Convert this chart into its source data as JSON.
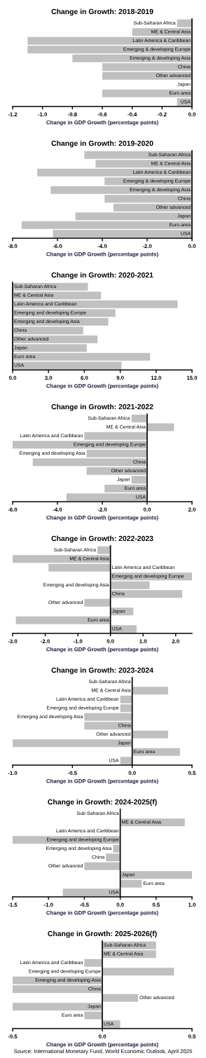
{
  "chart_data": [
    {
      "type": "bar",
      "orientation": "horizontal",
      "title": "Change in Growth: 2018-2019",
      "xlabel": "Change in GDP Growth (percentage points)",
      "color": "#c0c0c0",
      "categories": [
        "Sub-Saharan Africa",
        "ME & Central Asia",
        "Latin America & Caribbean",
        "Emerging & developing Europe",
        "Emerging & developing Asia",
        "China",
        "Other advanced",
        "Japan",
        "Euro area",
        "USA"
      ],
      "values": [
        -0.1,
        -0.4,
        -1.1,
        -1.1,
        -0.8,
        -0.6,
        -0.6,
        0.0,
        -0.6,
        -0.1
      ],
      "xlim": [
        -1.2,
        0.0
      ],
      "xticks": [
        {
          "value": -1.2,
          "label": "-1.2"
        },
        {
          "value": -1.0,
          "label": "-1.0"
        },
        {
          "value": -0.8,
          "label": "-0.8"
        },
        {
          "value": -0.6,
          "label": "-0.6"
        },
        {
          "value": -0.4,
          "label": "-0.4"
        },
        {
          "value": -0.2,
          "label": "-0.2"
        },
        {
          "value": 0,
          "label": "0.0"
        }
      ]
    },
    {
      "type": "bar",
      "orientation": "horizontal",
      "title": "Change in Growth: 2019-2020",
      "xlabel": "Change in GDP Growth (percentage points)",
      "color": "#c0c0c0",
      "categories": [
        "Sub-Saharan Africa",
        "ME & Central Asia",
        "Latin America & Caribbean",
        "Emerging & developing Europe",
        "Emerging & developing Asia",
        "China",
        "Other advanced",
        "Japan",
        "Euro area",
        "USA"
      ],
      "values": [
        -4.8,
        -4.3,
        -6.9,
        -3.9,
        -6.3,
        -3.9,
        -3.5,
        -5.2,
        -7.6,
        -6.2
      ],
      "xlim": [
        -8.0,
        0.0
      ],
      "xticks": [
        {
          "value": -8,
          "label": "-8.0"
        },
        {
          "value": -6,
          "label": "-6.0"
        },
        {
          "value": -4,
          "label": "-4.0"
        },
        {
          "value": -2,
          "label": "-2.0"
        },
        {
          "value": 0,
          "label": "0.0"
        }
      ]
    },
    {
      "type": "bar",
      "orientation": "horizontal",
      "title": "Change in Growth: 2020-2021",
      "xlabel": "Change in GDP Growth (percentage points)",
      "color": "#c0c0c0",
      "categories": [
        "Sub-Saharan Africa",
        "ME & Central Asia",
        "Latin America and Caribbean",
        "Emerging and developing Europe",
        "Emerging and developing Asia",
        "China",
        "Other advanced",
        "Japan",
        "Euro area",
        "USA"
      ],
      "values": [
        6.3,
        7.4,
        13.8,
        8.6,
        8.0,
        5.9,
        7.1,
        6.2,
        11.5,
        9.1
      ],
      "xlim": [
        0.0,
        15.0
      ],
      "xticks": [
        {
          "value": 0,
          "label": "0.0"
        },
        {
          "value": 3,
          "label": "3.0"
        },
        {
          "value": 6,
          "label": "6.0"
        },
        {
          "value": 9,
          "label": "9.0"
        },
        {
          "value": 12,
          "label": "12.0"
        },
        {
          "value": 15,
          "label": "15.0"
        }
      ]
    },
    {
      "type": "bar",
      "orientation": "horizontal",
      "title": "Change in Growth: 2021-2022",
      "xlabel": "Change in GDP Growth (percentage points)",
      "color": "#c0c0c0",
      "categories": [
        "Sub-Saharan Africa",
        "ME & Central Asia",
        "Latin America and Caribbean",
        "Emerging and developing Europe",
        "Emerging and developing Asia",
        "China",
        "Other advanced",
        "Japan",
        "Euro area",
        "USA"
      ],
      "values": [
        -0.7,
        1.2,
        -2.8,
        -6.0,
        -2.7,
        -5.1,
        -2.7,
        -0.7,
        -1.9,
        -3.6
      ],
      "xlim": [
        -6.0,
        2.0
      ],
      "xticks": [
        {
          "value": -6,
          "label": "-6.0"
        },
        {
          "value": -4,
          "label": "-4.0"
        },
        {
          "value": -2,
          "label": "-2.0"
        },
        {
          "value": 0,
          "label": "0.0"
        },
        {
          "value": 2,
          "label": "2.0"
        }
      ]
    },
    {
      "type": "bar",
      "orientation": "horizontal",
      "title": "Change in Growth: 2022-2023",
      "xlabel": "Change in GDP Growth (percentage points)",
      "color": "#c0c0c0",
      "categories": [
        "Sub-Saharan Africa",
        "ME & Central Asia",
        "Latin America and Caribbean",
        "Emerging and developing Europe",
        "Emerging and developing Asia",
        "China",
        "Other advanced",
        "Japan",
        "Euro area",
        "USA"
      ],
      "values": [
        -0.4,
        -3.0,
        -1.9,
        2.5,
        1.2,
        2.2,
        -0.8,
        0.7,
        -2.9,
        0.8
      ],
      "xlim": [
        -3.0,
        2.5
      ],
      "xticks": [
        {
          "value": -3,
          "label": "-3.0"
        },
        {
          "value": -2,
          "label": "-2.0"
        },
        {
          "value": -1,
          "label": "-1.0"
        },
        {
          "value": 0,
          "label": "0.0"
        },
        {
          "value": 1,
          "label": "1.0"
        },
        {
          "value": 2,
          "label": "2.0"
        }
      ]
    },
    {
      "type": "bar",
      "orientation": "horizontal",
      "title": "Change in Growth: 2023-2024",
      "xlabel": "Change in GDP Growth (percentage points)",
      "color": "#c0c0c0",
      "categories": [
        "Sub-Saharan Africa",
        "ME & Central Asia",
        "Latin America and Caribbean",
        "Emerging and developing Europe",
        "Emerging and developing Asia",
        "China",
        "Other advanced",
        "Japan",
        "Euro area",
        "USA"
      ],
      "values": [
        0.0,
        0.3,
        -0.1,
        -0.1,
        -0.4,
        -0.4,
        0.3,
        -1.0,
        0.4,
        -0.1
      ],
      "xlim": [
        -1.0,
        0.5
      ],
      "xticks": [
        {
          "value": -1,
          "label": "-1.0"
        },
        {
          "value": -0.5,
          "label": "-0.5"
        },
        {
          "value": 0,
          "label": "0.0"
        },
        {
          "value": 0.5,
          "label": "0.5"
        }
      ]
    },
    {
      "type": "bar",
      "orientation": "horizontal",
      "title": "Change in Growth: 2024-2025(f)",
      "xlabel": "Change in GDP Growth (percentage points)",
      "color": "#c0c0c0",
      "categories": [
        "Sub-Saharan Africa",
        "ME & Central Asia",
        "Latin America and Caribbean",
        "Emerging and developing Europe",
        "Emerging and developing Asia",
        "China",
        "Other advanced",
        "Japan",
        "Euro area",
        "USA"
      ],
      "values": [
        0.0,
        0.9,
        0.0,
        -1.5,
        -0.1,
        -0.2,
        -0.5,
        1.0,
        0.3,
        -0.8
      ],
      "xlim": [
        -1.5,
        1.0
      ],
      "xticks": [
        {
          "value": -1.5,
          "label": "-1.5"
        },
        {
          "value": -1,
          "label": "-1.0"
        },
        {
          "value": -0.5,
          "label": "-0.5"
        },
        {
          "value": 0,
          "label": "0.0"
        },
        {
          "value": 0.5,
          "label": "0.5"
        },
        {
          "value": 1,
          "label": "1.0"
        }
      ]
    },
    {
      "type": "bar",
      "orientation": "horizontal",
      "title": "Change in Growth: 2025-2026(f)",
      "xlabel": "Change in GDP Growth (percentage points)",
      "color": "#c0c0c0",
      "categories": [
        "Sub-Saharan Africa",
        "ME & Central Asia",
        "Latin America and Caribbean",
        "Emerging and developing Europe",
        "Emerging and developing Asia",
        "China",
        "Other advanced",
        "Japan",
        "Euro area",
        "USA"
      ],
      "values": [
        0.3,
        0.3,
        -0.1,
        0.4,
        -0.5,
        -0.5,
        0.2,
        -0.5,
        -0.1,
        0.1
      ],
      "xlim": [
        -0.5,
        0.5
      ],
      "xticks": [
        {
          "value": -0.5,
          "label": "-0.5"
        },
        {
          "value": 0,
          "label": "0.0"
        },
        {
          "value": 0.5,
          "label": "0.5"
        }
      ],
      "annotations": [
        "Source: International Monetary Fund, World Economic Outlook, April 2025"
      ]
    }
  ]
}
